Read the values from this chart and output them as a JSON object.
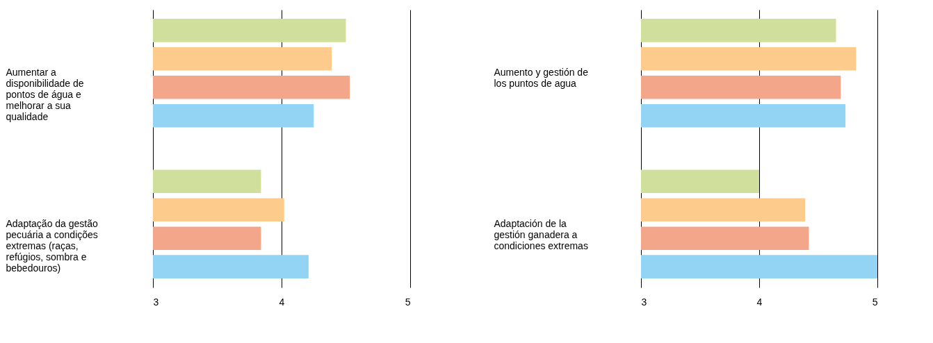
{
  "chart_data": [
    {
      "type": "bar",
      "orientation": "horizontal",
      "categories": [
        "Aumentar a disponibilidade de pontos de água e melhorar a sua qualidade",
        "Adaptação da gestão pecuária a condições extremas (raças, refúgios, sombra e bebedouros)"
      ],
      "series": [
        {
          "color": "#d0e09c",
          "values": [
            4.5,
            3.84
          ]
        },
        {
          "color": "#fdcc8c",
          "values": [
            4.39,
            4.02
          ]
        },
        {
          "color": "#f4a68a",
          "values": [
            4.53,
            3.84
          ]
        },
        {
          "color": "#93d3f3",
          "values": [
            4.25,
            4.21
          ]
        }
      ],
      "xlim": [
        3,
        5
      ],
      "xticks": [
        3,
        4,
        5
      ],
      "grid": "x"
    },
    {
      "type": "bar",
      "orientation": "horizontal",
      "categories": [
        "Aumento y gestión de los puntos de agua",
        "Adaptación de la gestión ganadera a condiciones extremas"
      ],
      "series": [
        {
          "color": "#d0e09c",
          "values": [
            4.65,
            4.0
          ]
        },
        {
          "color": "#fdcc8c",
          "values": [
            4.82,
            4.39
          ]
        },
        {
          "color": "#f4a68a",
          "values": [
            4.69,
            4.42
          ]
        },
        {
          "color": "#93d3f3",
          "values": [
            4.73,
            5.0
          ]
        }
      ],
      "xlim": [
        3,
        5
      ],
      "xticks": [
        3,
        4,
        5
      ],
      "grid": "x"
    }
  ]
}
